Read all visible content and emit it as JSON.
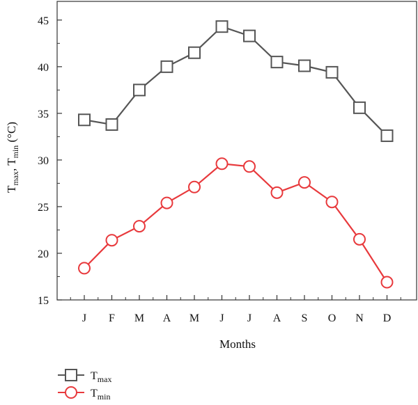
{
  "chart_data": {
    "type": "line",
    "categories": [
      "J",
      "F",
      "M",
      "A",
      "M",
      "J",
      "J",
      "A",
      "S",
      "O",
      "N",
      "D"
    ],
    "xlabel": "Months",
    "ylabel": {
      "parts": [
        "T",
        "max",
        ", T",
        "min",
        " (°C)"
      ]
    },
    "ylim": [
      15,
      47
    ],
    "yticks": [
      "15",
      "20",
      "25",
      "30",
      "35",
      "40",
      "45"
    ],
    "grid": false,
    "legend_position": "bottom-left",
    "series": [
      {
        "key": "tmax",
        "name": "T",
        "name_sub": "max",
        "marker": "square",
        "color": "#555555",
        "values": [
          34.3,
          33.8,
          37.5,
          40.0,
          41.5,
          44.3,
          43.3,
          40.5,
          40.1,
          39.4,
          35.6,
          32.6
        ]
      },
      {
        "key": "tmin",
        "name": "T",
        "name_sub": "min",
        "marker": "circle",
        "color": "#e8393c",
        "values": [
          18.4,
          21.4,
          22.9,
          25.4,
          27.1,
          29.6,
          29.3,
          26.5,
          27.6,
          25.5,
          21.5,
          16.9
        ]
      }
    ]
  }
}
